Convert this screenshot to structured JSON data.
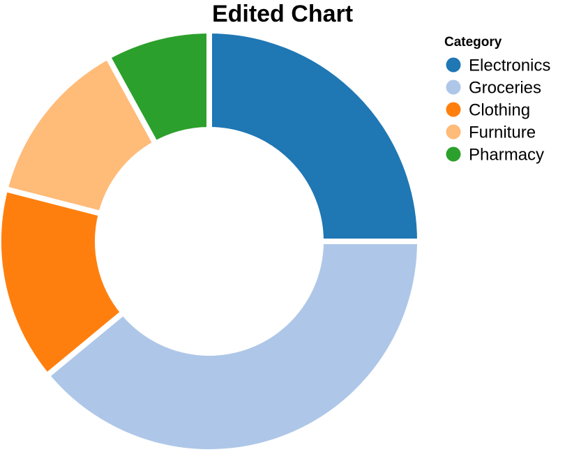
{
  "chart_data": {
    "type": "pie",
    "title": "Edited Chart",
    "donut": true,
    "legend": {
      "title": "Category",
      "position": "top-right"
    },
    "categories": [
      "Electronics",
      "Groceries",
      "Clothing",
      "Furniture",
      "Pharmacy"
    ],
    "values": [
      25,
      39,
      15,
      13,
      8
    ],
    "colors": [
      "#1f77b4",
      "#aec7e8",
      "#ff7f0e",
      "#ffbb78",
      "#2ca02c"
    ]
  }
}
